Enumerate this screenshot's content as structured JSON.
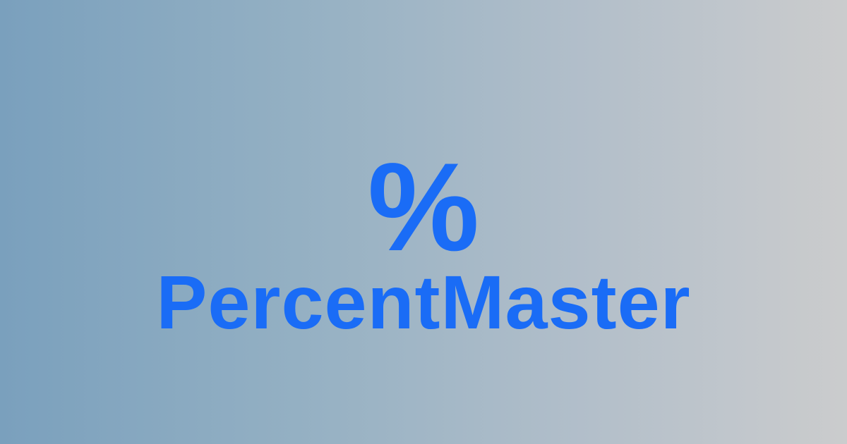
{
  "brand": {
    "symbol": "%",
    "name": "PercentMaster"
  },
  "colors": {
    "text": "#1a6cf6",
    "gradient_left": "#7aa0bd",
    "gradient_right": "#cbcccd"
  }
}
